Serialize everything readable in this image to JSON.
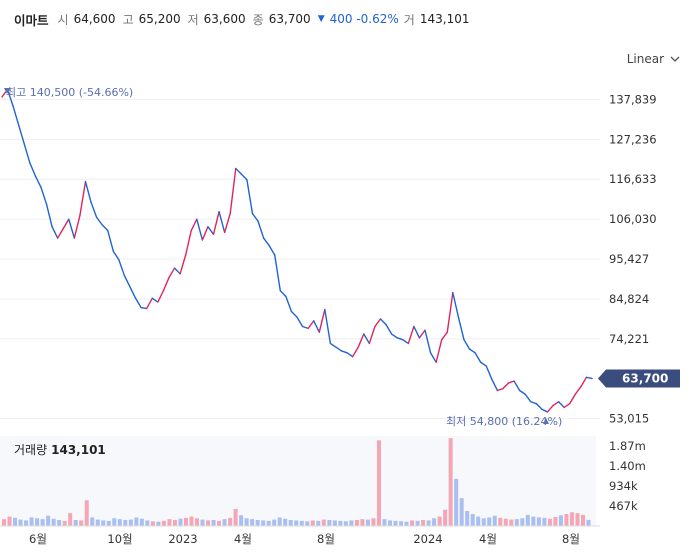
{
  "header": {
    "name": "이마트",
    "open_label": "시",
    "open": "64,600",
    "high_label": "고",
    "high": "65,200",
    "low_label": "저",
    "low": "63,600",
    "close_label": "종",
    "close": "63,700",
    "change": "400 -0.62%",
    "volume_label": "거",
    "volume": "143,101"
  },
  "scale_button": {
    "label": "Linear",
    "icon": "chevron-down-icon"
  },
  "colors": {
    "up": "#e0245e",
    "down": "#1f63d6",
    "badge": "#3b4c7e",
    "annotation": "#5a6fb0",
    "volume_up": "#f4a6b5",
    "volume_down": "#a9bff0"
  },
  "chart_data": {
    "type": "line",
    "y_ticks": [
      "137,839",
      "127,236",
      "116,633",
      "106,030",
      "95,427",
      "84,824",
      "74,221",
      "63,700",
      "53,015"
    ],
    "ylim": [
      50000,
      143000
    ],
    "x_ticks": [
      "6월",
      "10월",
      "2023",
      "4월",
      "8월",
      "2024",
      "4월",
      "8월"
    ],
    "high_annotation": "최고 140,500 (-54.66%)",
    "low_annotation": "최저 54,800 (16.24%)",
    "last_price_label": "63,700",
    "series": [
      {
        "values": [
          138500,
          140500,
          136000,
          131000,
          126000,
          121000,
          117500,
          114500,
          110000,
          104000,
          101000,
          103500,
          106000,
          101000,
          107000,
          116000,
          110500,
          106500,
          104500,
          103000,
          97500,
          95200,
          91000,
          88000,
          85000,
          82500,
          82300,
          85000,
          84000,
          87000,
          90500,
          93000,
          91500,
          96500,
          103000,
          106000,
          100500,
          104000,
          102000,
          108000,
          102500,
          107500,
          119500,
          118000,
          116500,
          107500,
          105500,
          101000,
          99000,
          96500,
          87000,
          85500,
          81500,
          80000,
          77500,
          77000,
          79000,
          76000,
          82000,
          73000,
          72000,
          71000,
          70500,
          69500,
          72000,
          75500,
          73000,
          77500,
          79500,
          78000,
          75500,
          74500,
          74000,
          73000,
          77500,
          74500,
          76500,
          70500,
          68000,
          74000,
          76000,
          86500,
          80000,
          74000,
          71500,
          70500,
          68000,
          67000,
          63500,
          60500,
          61000,
          62500,
          63000,
          60500,
          59500,
          57500,
          57000,
          55500,
          54800,
          56500,
          57500,
          56000,
          57000,
          59500,
          61500,
          64000,
          63700
        ]
      }
    ],
    "volume": {
      "title_label": "거래량",
      "title_value": "143,101",
      "y_ticks": [
        "1.87m",
        "1.40m",
        "934k",
        "467k"
      ],
      "ylim": [
        0,
        2100000
      ],
      "values": [
        160000,
        220000,
        190000,
        150000,
        130000,
        200000,
        180000,
        160000,
        240000,
        170000,
        140000,
        120000,
        300000,
        140000,
        130000,
        600000,
        200000,
        150000,
        130000,
        120000,
        180000,
        160000,
        140000,
        150000,
        200000,
        170000,
        130000,
        110000,
        100000,
        120000,
        160000,
        140000,
        170000,
        190000,
        220000,
        180000,
        150000,
        130000,
        140000,
        120000,
        160000,
        190000,
        400000,
        250000,
        180000,
        160000,
        140000,
        130000,
        120000,
        150000,
        200000,
        170000,
        140000,
        130000,
        120000,
        110000,
        130000,
        120000,
        150000,
        140000,
        130000,
        120000,
        110000,
        130000,
        140000,
        160000,
        150000,
        180000,
        2000000,
        160000,
        130000,
        120000,
        110000,
        100000,
        130000,
        120000,
        140000,
        130000,
        180000,
        220000,
        380000,
        2050000,
        1100000,
        650000,
        350000,
        280000,
        220000,
        180000,
        200000,
        240000,
        190000,
        170000,
        150000,
        160000,
        180000,
        260000,
        220000,
        200000,
        190000,
        170000,
        210000,
        250000,
        280000,
        320000,
        300000,
        260000,
        143101
      ]
    }
  }
}
